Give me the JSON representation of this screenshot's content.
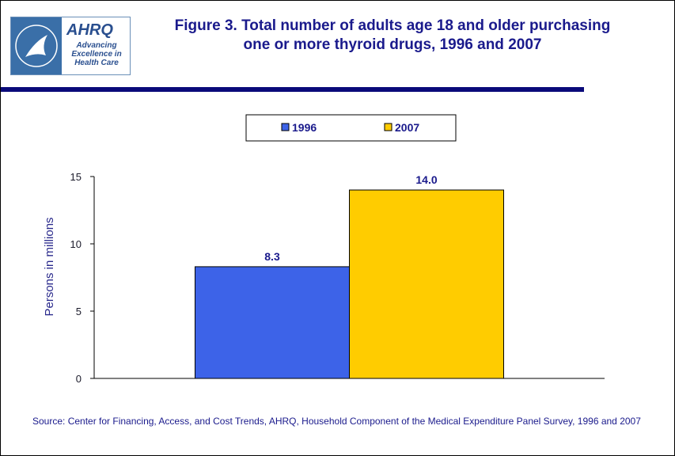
{
  "logo": {
    "agency": "AHRQ",
    "tagline": "Advancing Excellence in Health Care"
  },
  "chart_data": {
    "type": "bar",
    "title": "Figure 3. Total number of adults age 18 and older purchasing one or more thyroid drugs, 1996 and 2007",
    "y_label": "Persons in millions",
    "categories": [
      null
    ],
    "series": [
      {
        "name": "1996",
        "color": "#3d63e8",
        "values": [
          8.3
        ]
      },
      {
        "name": "2007",
        "color": "#ffcc00",
        "values": [
          14
        ],
        "value_labels": [
          "14.0"
        ]
      }
    ],
    "ylim": [
      0,
      15
    ],
    "yticks": [
      0,
      5,
      10,
      15
    ],
    "grid": false,
    "legend": "top",
    "source": "Source: Center for Financing, Access, and Cost Trends, AHRQ, Household Component of the Medical Expenditure Panel Survey, 1996 and 2007"
  }
}
